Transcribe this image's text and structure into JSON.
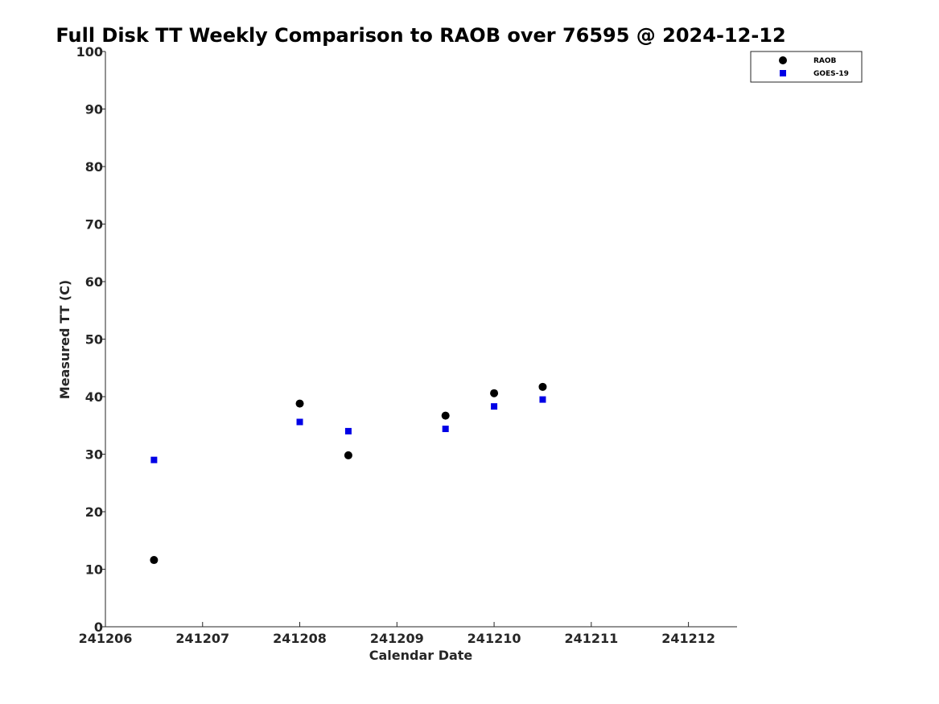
{
  "chart_data": {
    "type": "scatter",
    "title": "Full Disk TT Weekly Comparison to RAOB over 76595 @ 2024-12-12",
    "xlabel": "Calendar Date",
    "ylabel": "Measured TT (C)",
    "xlim": [
      241206,
      241212.5
    ],
    "ylim": [
      0,
      100
    ],
    "x_ticks": [
      241206,
      241207,
      241208,
      241209,
      241210,
      241211,
      241212
    ],
    "x_tick_labels": [
      "241206",
      "241207",
      "241208",
      "241209",
      "241210",
      "241211",
      "241212"
    ],
    "y_ticks": [
      0,
      10,
      20,
      30,
      40,
      50,
      60,
      70,
      80,
      90,
      100
    ],
    "y_tick_labels": [
      "0",
      "10",
      "20",
      "30",
      "40",
      "50",
      "60",
      "70",
      "80",
      "90",
      "100"
    ],
    "grid": false,
    "legend_position": "top-right",
    "series": [
      {
        "name": "RAOB",
        "marker": "circle",
        "color": "#000000",
        "x": [
          241206.5,
          241208.0,
          241208.5,
          241209.5,
          241210.0,
          241210.5
        ],
        "y": [
          11.6,
          38.8,
          29.8,
          36.7,
          40.6,
          41.7
        ]
      },
      {
        "name": "GOES-19",
        "marker": "square",
        "color": "#0000e6",
        "x": [
          241206.5,
          241208.0,
          241208.5,
          241209.5,
          241210.0,
          241210.5
        ],
        "y": [
          29.0,
          35.6,
          34.0,
          34.4,
          38.3,
          39.5
        ]
      }
    ]
  }
}
